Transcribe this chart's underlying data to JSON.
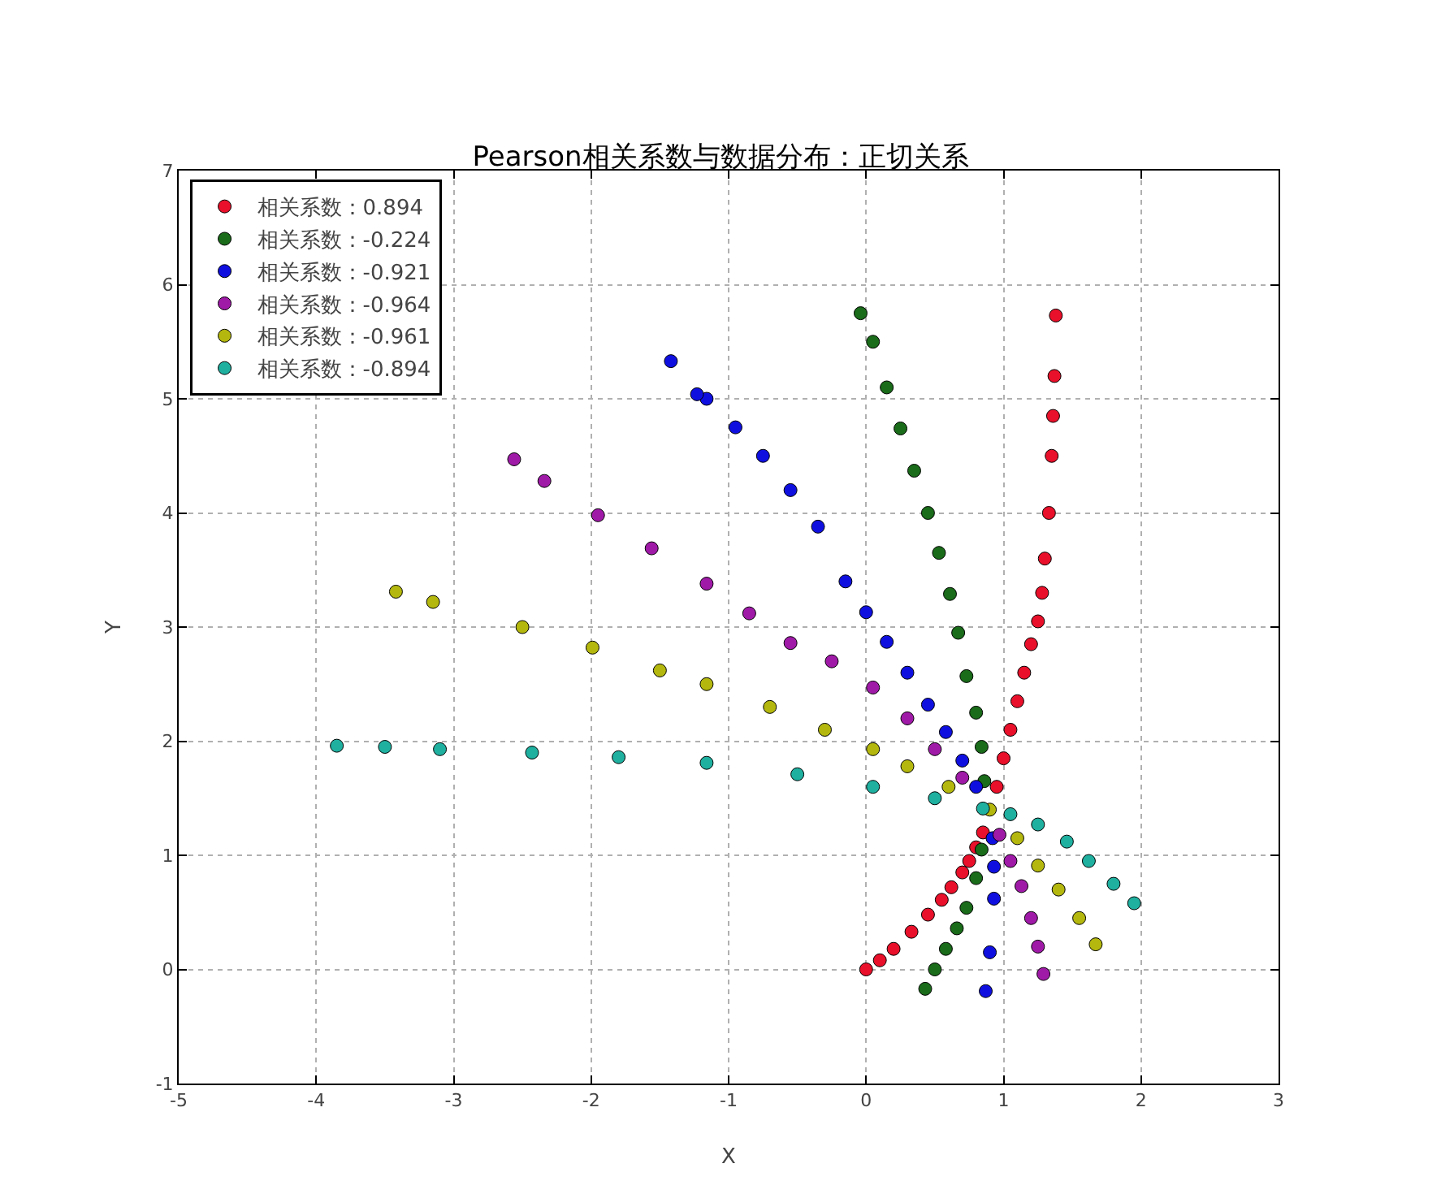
{
  "chart_data": {
    "type": "scatter",
    "title": "Pearson相关系数与数据分布：正切关系",
    "xlabel": "X",
    "ylabel": "Y",
    "xlim": [
      -5,
      3
    ],
    "ylim": [
      -1,
      7
    ],
    "xticks": [
      -5,
      -4,
      -3,
      -2,
      -1,
      0,
      1,
      2,
      3
    ],
    "yticks": [
      -1,
      0,
      1,
      2,
      3,
      4,
      5,
      6,
      7
    ],
    "grid": true,
    "legend": "top left",
    "marker": "circle",
    "series": [
      {
        "name": "相关系数：0.894",
        "color": "#e8102a",
        "x": [
          0,
          0.1,
          0.2,
          0.33,
          0.45,
          0.55,
          0.62,
          0.7,
          0.75,
          0.8,
          0.85,
          0.95,
          1.0,
          1.05,
          1.1,
          1.15,
          1.2,
          1.25,
          1.28,
          1.3,
          1.33,
          1.35,
          1.36,
          1.37,
          1.38
        ],
        "values": [
          0,
          0.08,
          0.18,
          0.33,
          0.48,
          0.61,
          0.72,
          0.85,
          0.95,
          1.07,
          1.2,
          1.6,
          1.85,
          2.1,
          2.35,
          2.6,
          2.85,
          3.05,
          3.3,
          3.6,
          4.0,
          4.5,
          4.85,
          5.2,
          5.73
        ]
      },
      {
        "name": "相关系数：-0.224",
        "color": "#1a6b1a",
        "x": [
          0.43,
          0.5,
          0.58,
          0.66,
          0.73,
          0.8,
          0.84,
          0.86,
          0.84,
          0.8,
          0.73,
          0.67,
          0.61,
          0.53,
          0.45,
          0.35,
          0.25,
          0.15,
          0.05,
          -0.04
        ],
        "values": [
          -0.17,
          0.0,
          0.18,
          0.36,
          0.54,
          0.8,
          1.05,
          1.65,
          1.95,
          2.25,
          2.57,
          2.95,
          3.29,
          3.65,
          4.0,
          4.37,
          4.74,
          5.1,
          5.5,
          5.75
        ]
      },
      {
        "name": "相关系数：-0.921",
        "color": "#0f10e0",
        "x": [
          0.87,
          0.9,
          0.93,
          0.93,
          0.92,
          0.8,
          0.7,
          0.58,
          0.45,
          0.3,
          0.15,
          0,
          -0.15,
          -0.35,
          -0.55,
          -0.75,
          -0.95,
          -1.16,
          -1.23,
          -1.42
        ],
        "values": [
          -0.19,
          0.15,
          0.62,
          0.9,
          1.15,
          1.6,
          1.83,
          2.08,
          2.32,
          2.6,
          2.87,
          3.13,
          3.4,
          3.88,
          4.2,
          4.5,
          4.75,
          5.0,
          5.04,
          5.33
        ]
      },
      {
        "name": "相关系数：-0.964",
        "color": "#a01aa8",
        "x": [
          1.29,
          1.25,
          1.2,
          1.13,
          1.05,
          0.97,
          0.7,
          0.5,
          0.3,
          0.05,
          -0.25,
          -0.55,
          -0.85,
          -1.16,
          -1.56,
          -1.95,
          -2.34,
          -2.56
        ],
        "values": [
          -0.04,
          0.2,
          0.45,
          0.73,
          0.95,
          1.18,
          1.68,
          1.93,
          2.2,
          2.47,
          2.7,
          2.86,
          3.12,
          3.38,
          3.69,
          3.98,
          4.28,
          4.47
        ]
      },
      {
        "name": "相关系数：-0.961",
        "color": "#b4b80e",
        "x": [
          1.67,
          1.55,
          1.4,
          1.25,
          1.1,
          0.9,
          0.6,
          0.3,
          0.05,
          -0.3,
          -0.7,
          -1.16,
          -1.5,
          -1.99,
          -2.5,
          -3.15,
          -3.42
        ],
        "values": [
          0.22,
          0.45,
          0.7,
          0.91,
          1.15,
          1.4,
          1.6,
          1.78,
          1.93,
          2.1,
          2.3,
          2.5,
          2.62,
          2.82,
          3.0,
          3.22,
          3.31
        ]
      },
      {
        "name": "相关系数：-0.894",
        "color": "#1fb0a0",
        "x": [
          1.95,
          1.8,
          1.62,
          1.46,
          1.25,
          1.05,
          0.85,
          0.5,
          0.05,
          -0.5,
          -1.16,
          -1.8,
          -2.43,
          -3.1,
          -3.5,
          -3.85
        ],
        "values": [
          0.58,
          0.75,
          0.95,
          1.12,
          1.27,
          1.36,
          1.41,
          1.5,
          1.6,
          1.71,
          1.81,
          1.86,
          1.9,
          1.93,
          1.95,
          1.96
        ]
      }
    ]
  }
}
